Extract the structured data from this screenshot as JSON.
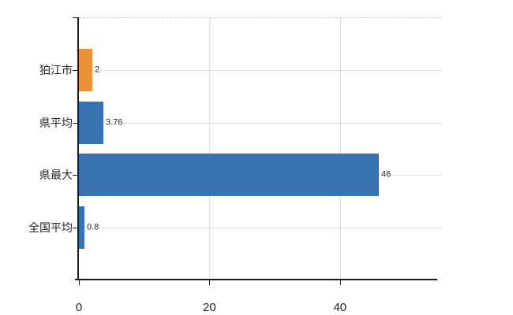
{
  "chart_data": {
    "type": "bar",
    "orientation": "horizontal",
    "title": "",
    "xlabel": "",
    "ylabel": "",
    "categories": [
      "狛江市",
      "県平均",
      "県最大",
      "全国平均"
    ],
    "values": [
      2,
      3.76,
      46,
      0.8
    ],
    "value_labels": [
      "2",
      "3.76",
      "46",
      "0.8"
    ],
    "bar_colors": [
      "#EC9039",
      "#3B72B1",
      "#3B72B1",
      "#3B72B1"
    ],
    "x_ticks": [
      0,
      20,
      40
    ],
    "x_tick_labels": [
      "0",
      "20",
      "40"
    ],
    "xlim": [
      0,
      55.5
    ],
    "grid": true,
    "legend": false,
    "annotations": []
  },
  "colors": {
    "background": "#ffffff",
    "axis": "#1a1a1a",
    "h_gridline": "#d9ddd5",
    "v_gridline": "#dcd8dc",
    "top_border_dash": "#c9c9c9",
    "category_text": "#262626",
    "value_text": "#262626",
    "tick_text": "#262626",
    "orange_bar": "#EC9039",
    "blue_bar": "#3B72B1"
  }
}
